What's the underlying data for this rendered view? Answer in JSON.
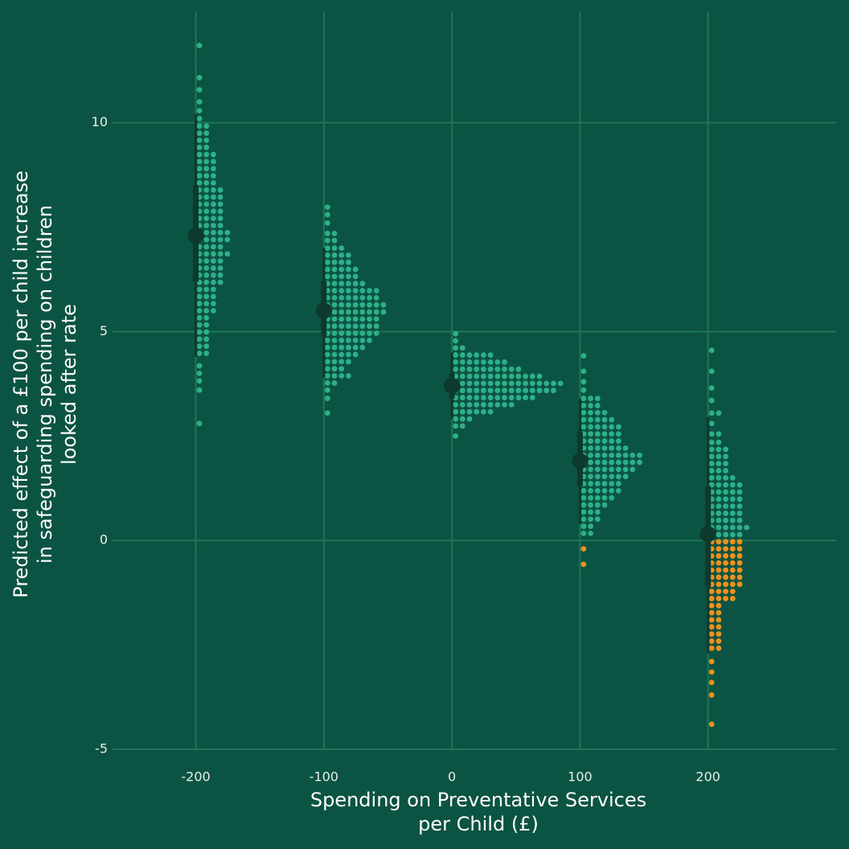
{
  "chart_data": {
    "type": "dotplot",
    "x_label": [
      "Spending on Preventative Services",
      "per Child (£)"
    ],
    "y_label": [
      "Predicted effect of a £100 per child increase",
      "in safeguarding spending on children",
      "looked after rate"
    ],
    "xlim": [
      -265,
      300
    ],
    "ylim": [
      -5,
      12.65
    ],
    "xticks": [
      -200,
      -100,
      0,
      100,
      200
    ],
    "yticks": [
      -5,
      0,
      5,
      10
    ],
    "grid": true,
    "colors": {
      "background": "#0b5342",
      "grid": "#1f7658",
      "positive": "#2db08a",
      "negative": "#f0901e",
      "interval": "#0e3a2e"
    },
    "groups": [
      {
        "x": -200,
        "point": 7.3,
        "interval_66": [
          6.2,
          8.5
        ],
        "interval_95": [
          4.4,
          10.2
        ],
        "rows": {
          "y": [
            11.85,
            11.08,
            10.79,
            10.5,
            10.29,
            10.1,
            9.92,
            9.75,
            9.58,
            9.41,
            9.24,
            9.07,
            8.9,
            8.73,
            8.56,
            8.39,
            8.22,
            8.05,
            7.88,
            7.71,
            7.54,
            7.37,
            7.2,
            7.03,
            6.86,
            6.69,
            6.52,
            6.35,
            6.18,
            6.01,
            5.84,
            5.67,
            5.5,
            5.33,
            5.16,
            4.99,
            4.82,
            4.65,
            4.48,
            4.18,
            4.0,
            3.82,
            3.6,
            2.8
          ],
          "count": [
            1,
            1,
            1,
            1,
            1,
            1,
            2,
            2,
            2,
            2,
            3,
            3,
            3,
            3,
            3,
            4,
            4,
            4,
            4,
            4,
            4,
            5,
            5,
            4,
            5,
            4,
            4,
            4,
            4,
            3,
            3,
            3,
            3,
            2,
            2,
            2,
            2,
            2,
            2,
            1,
            1,
            1,
            1,
            1
          ]
        }
      },
      {
        "x": -100,
        "point": 5.5,
        "interval_66": [
          4.9,
          6.2
        ],
        "interval_95": [
          3.9,
          7.0
        ],
        "rows": {
          "y": [
            7.98,
            7.8,
            7.6,
            7.35,
            7.18,
            7.0,
            6.83,
            6.66,
            6.49,
            6.32,
            6.15,
            5.98,
            5.81,
            5.64,
            5.47,
            5.3,
            5.13,
            4.96,
            4.79,
            4.62,
            4.45,
            4.28,
            4.11,
            3.94,
            3.77,
            3.6,
            3.4,
            3.05
          ],
          "count": [
            1,
            1,
            1,
            2,
            2,
            3,
            4,
            4,
            5,
            5,
            6,
            8,
            8,
            9,
            9,
            8,
            8,
            8,
            7,
            6,
            5,
            4,
            3,
            4,
            2,
            1,
            1,
            1
          ]
        }
      },
      {
        "x": 0,
        "point": 3.7,
        "interval_66": [
          3.4,
          4.0
        ],
        "interval_95": [
          2.9,
          4.5
        ],
        "rows": {
          "y": [
            4.95,
            4.78,
            4.61,
            4.44,
            4.27,
            4.1,
            3.93,
            3.76,
            3.59,
            3.42,
            3.25,
            3.08,
            2.91,
            2.74,
            2.5
          ],
          "count": [
            1,
            1,
            2,
            6,
            8,
            10,
            13,
            16,
            15,
            12,
            9,
            6,
            3,
            2,
            1
          ]
        }
      },
      {
        "x": 100,
        "point": 1.9,
        "interval_66": [
          1.3,
          2.6
        ],
        "interval_95": [
          0.4,
          3.4
        ],
        "rows": {
          "y": [
            4.42,
            4.05,
            3.8,
            3.6,
            3.4,
            3.23,
            3.06,
            2.89,
            2.72,
            2.55,
            2.38,
            2.21,
            2.04,
            1.87,
            1.7,
            1.53,
            1.36,
            1.19,
            1.02,
            0.85,
            0.68,
            0.51,
            0.34,
            0.17,
            -0.2,
            -0.57
          ],
          "count": [
            1,
            1,
            1,
            1,
            3,
            3,
            4,
            5,
            6,
            6,
            6,
            7,
            9,
            9,
            8,
            7,
            6,
            6,
            5,
            4,
            3,
            3,
            2,
            2,
            1,
            1
          ]
        }
      },
      {
        "x": 200,
        "point": 0.15,
        "interval_66": [
          -1.1,
          1.3
        ],
        "interval_95": [
          -2.7,
          2.95
        ],
        "rows": {
          "y": [
            4.55,
            4.05,
            3.65,
            3.35,
            3.05,
            2.8,
            2.55,
            2.35,
            2.18,
            2.01,
            1.84,
            1.67,
            1.5,
            1.33,
            1.16,
            0.99,
            0.82,
            0.65,
            0.48,
            0.31,
            0.14,
            -0.03,
            -0.2,
            -0.37,
            -0.54,
            -0.71,
            -0.88,
            -1.05,
            -1.22,
            -1.39,
            -1.56,
            -1.73,
            -1.9,
            -2.07,
            -2.24,
            -2.41,
            -2.58,
            -2.9,
            -3.15,
            -3.4,
            -3.7,
            -4.4
          ],
          "count": [
            1,
            1,
            1,
            1,
            2,
            1,
            2,
            2,
            3,
            3,
            3,
            3,
            4,
            5,
            5,
            5,
            5,
            5,
            5,
            6,
            5,
            5,
            5,
            5,
            5,
            5,
            5,
            5,
            4,
            4,
            2,
            2,
            2,
            2,
            2,
            2,
            2,
            1,
            1,
            1,
            1,
            1
          ]
        }
      }
    ]
  }
}
